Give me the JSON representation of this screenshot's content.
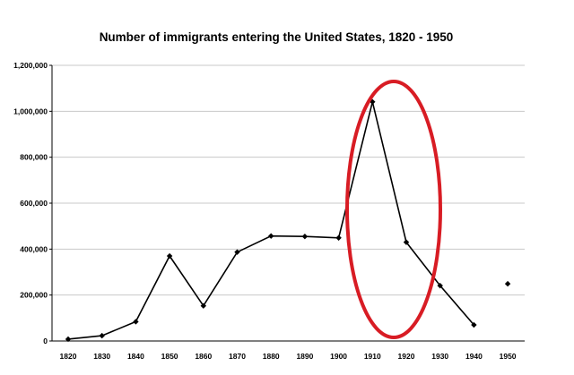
{
  "chart_data": {
    "type": "line",
    "title": "Number of immigrants entering the United States, 1820 - 1950",
    "xlabel": "",
    "ylabel": "",
    "categories": [
      "1820",
      "1830",
      "1840",
      "1850",
      "1860",
      "1870",
      "1880",
      "1890",
      "1900",
      "1910",
      "1920",
      "1930",
      "1940",
      "1950"
    ],
    "series": [
      {
        "values": [
          8000,
          23000,
          84000,
          370000,
          153000,
          387000,
          457000,
          455000,
          449000,
          1041000,
          430000,
          241000,
          70000,
          249000
        ],
        "segments": [
          [
            0,
            12
          ],
          [
            13,
            13
          ]
        ]
      }
    ],
    "yticks": [
      "0",
      "200,000",
      "400,000",
      "600,000",
      "800,000",
      "1,000,000",
      "1,200,000"
    ],
    "ylim": [
      0,
      1200000
    ],
    "grid": true,
    "legend": "none",
    "annotation": {
      "shape": "ellipse",
      "color": "#d81c24",
      "x_from": "1907",
      "x_to": "1932"
    }
  }
}
